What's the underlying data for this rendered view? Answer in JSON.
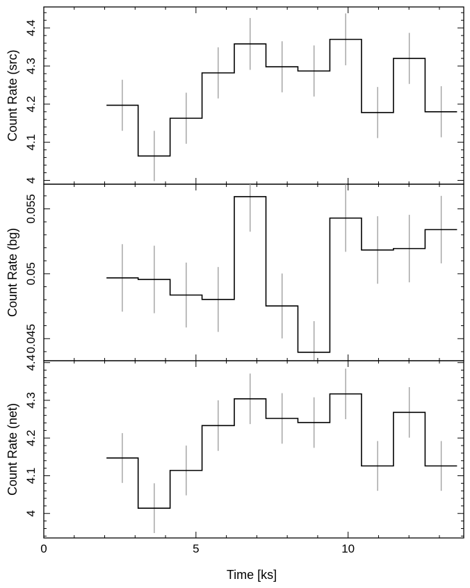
{
  "chart_data": {
    "type": "line",
    "xlabel": "Time [ks]",
    "xlim": [
      0,
      13.8
    ],
    "xticks": [
      0,
      5,
      10
    ],
    "x_tick_labels": [
      "0",
      "5",
      "10"
    ],
    "bin_edges": [
      2.06,
      3.1,
      4.15,
      5.2,
      6.26,
      7.3,
      8.35,
      9.4,
      10.44,
      11.49,
      12.53,
      13.58
    ],
    "x_centers": [
      2.58,
      3.63,
      4.68,
      5.73,
      6.78,
      7.83,
      8.88,
      9.92,
      10.97,
      12.01,
      13.06
    ],
    "panels": [
      {
        "name": "src",
        "ylabel": "Count Rate (src)",
        "ylim": [
          3.99,
          4.455
        ],
        "yticks": [
          4.0,
          4.1,
          4.2,
          4.3,
          4.4
        ],
        "y_tick_labels": [
          "4",
          "4.1",
          "4.2",
          "4.3",
          "4.4"
        ],
        "values": [
          4.197,
          4.064,
          4.163,
          4.282,
          4.358,
          4.298,
          4.287,
          4.37,
          4.178,
          4.32,
          4.18
        ],
        "errors": [
          0.067,
          0.066,
          0.067,
          0.067,
          0.068,
          0.067,
          0.067,
          0.068,
          0.067,
          0.067,
          0.067
        ]
      },
      {
        "name": "bg",
        "ylabel": "Count Rate (bg)",
        "ylim": [
          0.0433,
          0.0569
        ],
        "yticks": [
          0.045,
          0.05,
          0.055
        ],
        "y_tick_labels": [
          "0.045",
          "0.05",
          "0.055"
        ],
        "values": [
          0.04968,
          0.04956,
          0.04836,
          0.04802,
          0.05594,
          0.04752,
          0.04395,
          0.05429,
          0.05183,
          0.05194,
          0.0534
        ],
        "errors": [
          0.0026,
          0.0026,
          0.0025,
          0.0025,
          0.0027,
          0.0025,
          0.0024,
          0.0026,
          0.0026,
          0.0026,
          0.0026
        ]
      },
      {
        "name": "net",
        "ylabel": "Count Rate (net)",
        "ylim": [
          3.935,
          4.405
        ],
        "yticks": [
          4.0,
          4.1,
          4.2,
          4.3,
          4.4
        ],
        "y_tick_labels": [
          "4",
          "4.1",
          "4.2",
          "4.3",
          "4.4"
        ],
        "values": [
          4.147,
          4.014,
          4.114,
          4.233,
          4.304,
          4.252,
          4.241,
          4.317,
          4.126,
          4.268,
          4.126
        ],
        "errors": [
          0.066,
          0.066,
          0.066,
          0.067,
          0.067,
          0.067,
          0.067,
          0.067,
          0.066,
          0.067,
          0.066
        ]
      }
    ],
    "colors": {
      "step": "#000000",
      "error_bar": "#a0a0a0",
      "axes": "#000000"
    },
    "grid": false,
    "legend": "none"
  }
}
